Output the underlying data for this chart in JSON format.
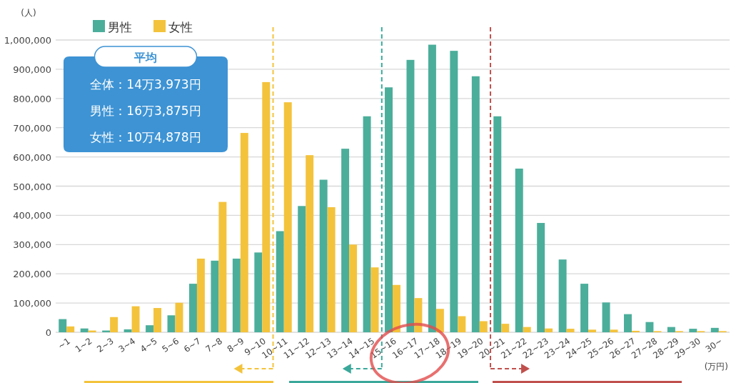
{
  "chart_data": {
    "type": "bar",
    "xlabel": "(万円)",
    "ylabel": "(人)",
    "categories": [
      "~1",
      "1~2",
      "2~3",
      "3~4",
      "4~5",
      "5~6",
      "6~7",
      "7~8",
      "8~9",
      "9~10",
      "10~11",
      "11~12",
      "12~13",
      "13~14",
      "14~15",
      "15~16",
      "16~17",
      "17~18",
      "18~19",
      "19~20",
      "20~21",
      "21~22",
      "22~23",
      "23~24",
      "24~25",
      "25~26",
      "26~27",
      "27~28",
      "28~29",
      "29~30",
      "30~"
    ],
    "series": [
      {
        "name": "男性",
        "color": "#4bae9b",
        "values": [
          45000,
          13000,
          6000,
          10000,
          24000,
          58000,
          166000,
          245000,
          252000,
          273000,
          346000,
          432000,
          522000,
          628000,
          739000,
          838000,
          932000,
          984000,
          963000,
          876000,
          739000,
          560000,
          374000,
          249000,
          166000,
          102000,
          62000,
          35000,
          18000,
          12000,
          15000
        ]
      },
      {
        "name": "女性",
        "color": "#f4c33c",
        "values": [
          20000,
          6000,
          52000,
          89000,
          83000,
          101000,
          252000,
          446000,
          682000,
          856000,
          787000,
          606000,
          428000,
          300000,
          222000,
          162000,
          117000,
          80000,
          55000,
          38000,
          29000,
          18000,
          13000,
          12000,
          9000,
          9000,
          5000,
          4000,
          4000,
          4000,
          4000
        ]
      }
    ],
    "ylim": [
      0,
      1000000
    ],
    "yticks": [
      0,
      {
        "value": 100000,
        "label": "100,000"
      },
      {
        "value": 200000,
        "label": "200,000"
      },
      {
        "value": 300000,
        "label": "300,000"
      },
      {
        "value": 400000,
        "label": "400,000"
      },
      {
        "value": 500000,
        "label": "500,000"
      },
      {
        "value": 600000,
        "label": "600,000"
      },
      {
        "value": 700000,
        "label": "700,000"
      },
      {
        "value": 800000,
        "label": "800,000"
      },
      {
        "value": 900000,
        "label": "900,000"
      },
      {
        "value": 1000000,
        "label": "1,000,000"
      }
    ],
    "grid": "y",
    "legend": "top left",
    "annotations": [
      "平均",
      "全体：14万3,973円",
      "男性：16万3,875円",
      "女性：10万4,878円"
    ]
  }
}
